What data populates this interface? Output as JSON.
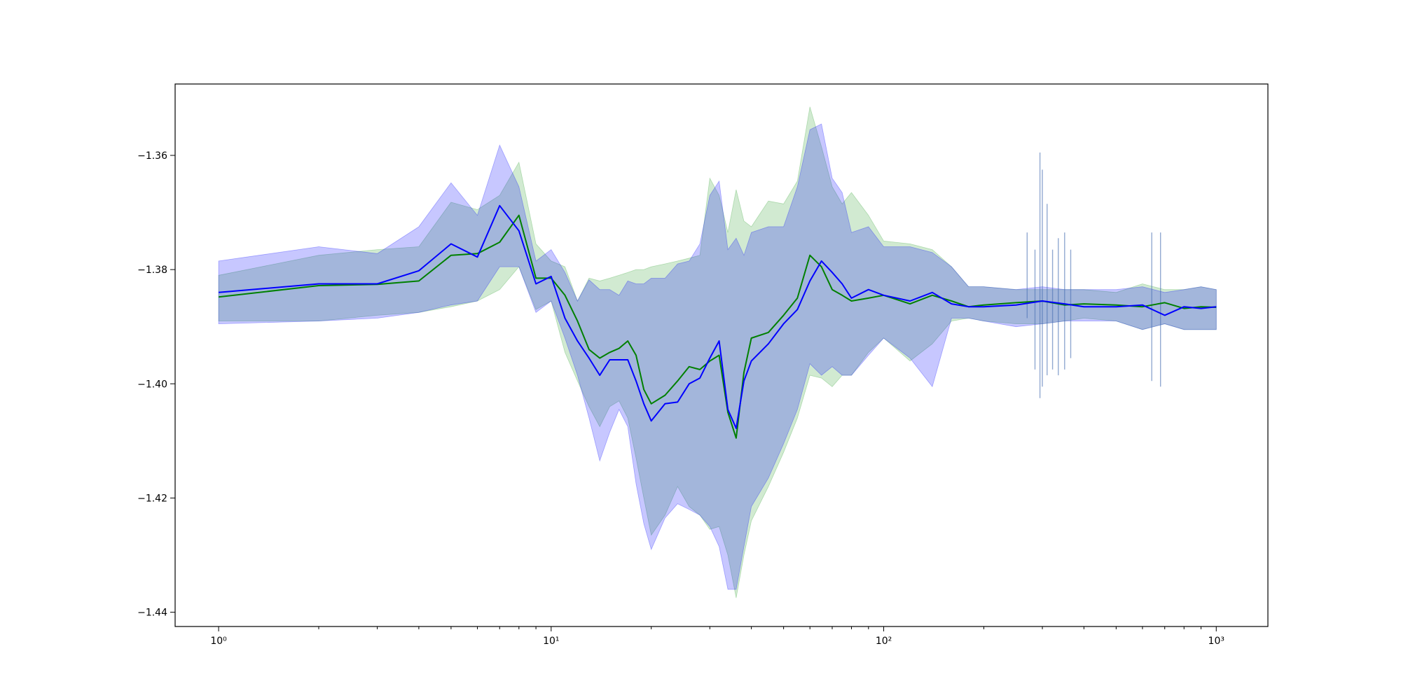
{
  "chart_data": {
    "type": "line",
    "title": "",
    "xlabel": "",
    "ylabel": "",
    "xscale": "log",
    "xlim": [
      0.74,
      1430
    ],
    "ylim": [
      -1.4425,
      -1.3475
    ],
    "grid": false,
    "legend": "none",
    "x_ticks": [
      {
        "value": 1,
        "label": "10⁰"
      },
      {
        "value": 10,
        "label": "10¹"
      },
      {
        "value": 100,
        "label": "10²"
      },
      {
        "value": 1000,
        "label": "10³"
      }
    ],
    "y_ticks": [
      {
        "value": -1.36,
        "label": "−1.36"
      },
      {
        "value": -1.38,
        "label": "−1.38"
      },
      {
        "value": -1.4,
        "label": "−1.40"
      },
      {
        "value": -1.42,
        "label": "−1.42"
      },
      {
        "value": -1.44,
        "label": "−1.44"
      }
    ],
    "series": [
      {
        "color": "#008000",
        "band_color": "#2ca02c",
        "x": [
          1,
          2,
          3,
          4,
          5,
          6,
          7,
          8,
          9,
          10,
          11,
          12,
          13,
          14,
          15,
          16,
          17,
          18,
          19,
          20,
          22,
          24,
          26,
          28,
          30,
          32,
          34,
          36,
          38,
          40,
          45,
          50,
          55,
          60,
          65,
          70,
          75,
          80,
          90,
          100,
          120,
          140,
          160,
          180,
          200,
          250,
          300,
          350,
          400,
          500,
          600,
          700,
          800,
          900,
          1000
        ],
        "y": [
          -1.3848,
          -1.3828,
          -1.3826,
          -1.382,
          -1.3775,
          -1.3772,
          -1.3752,
          -1.3705,
          -1.3815,
          -1.3815,
          -1.3845,
          -1.389,
          -1.394,
          -1.3955,
          -1.3945,
          -1.3938,
          -1.3925,
          -1.395,
          -1.401,
          -1.4035,
          -1.402,
          -1.3995,
          -1.397,
          -1.3975,
          -1.396,
          -1.395,
          -1.405,
          -1.4095,
          -1.398,
          -1.392,
          -1.391,
          -1.388,
          -1.385,
          -1.3775,
          -1.3795,
          -1.3835,
          -1.3845,
          -1.3855,
          -1.385,
          -1.3845,
          -1.386,
          -1.3845,
          -1.3855,
          -1.3865,
          -1.3862,
          -1.3858,
          -1.3855,
          -1.3862,
          -1.386,
          -1.3862,
          -1.3865,
          -1.3858,
          -1.3868,
          -1.3865,
          -1.3866
        ],
        "lower": [
          -1.389,
          -1.389,
          -1.388,
          -1.3875,
          -1.3865,
          -1.3855,
          -1.3835,
          -1.3795,
          -1.387,
          -1.3855,
          -1.3945,
          -1.3995,
          -1.404,
          -1.4075,
          -1.404,
          -1.403,
          -1.406,
          -1.413,
          -1.42,
          -1.4265,
          -1.423,
          -1.418,
          -1.4215,
          -1.423,
          -1.4255,
          -1.425,
          -1.43,
          -1.4375,
          -1.43,
          -1.424,
          -1.418,
          -1.412,
          -1.406,
          -1.3985,
          -1.399,
          -1.4005,
          -1.3985,
          -1.3985,
          -1.3945,
          -1.392,
          -1.396,
          -1.393,
          -1.389,
          -1.3885,
          -1.389,
          -1.3895,
          -1.3895,
          -1.389,
          -1.3885,
          -1.389,
          -1.3905,
          -1.3895,
          -1.3905,
          -1.3905,
          -1.3905
        ],
        "upper": [
          -1.381,
          -1.3775,
          -1.3765,
          -1.376,
          -1.3682,
          -1.3695,
          -1.367,
          -1.3612,
          -1.3755,
          -1.3785,
          -1.3795,
          -1.3855,
          -1.3815,
          -1.382,
          -1.3815,
          -1.381,
          -1.3805,
          -1.38,
          -1.38,
          -1.3795,
          -1.379,
          -1.3785,
          -1.378,
          -1.3775,
          -1.364,
          -1.367,
          -1.3735,
          -1.366,
          -1.3715,
          -1.3725,
          -1.368,
          -1.3685,
          -1.3645,
          -1.3515,
          -1.3585,
          -1.3655,
          -1.3685,
          -1.3665,
          -1.3705,
          -1.375,
          -1.3755,
          -1.3765,
          -1.3795,
          -1.383,
          -1.383,
          -1.3835,
          -1.3835,
          -1.3835,
          -1.3835,
          -1.384,
          -1.3825,
          -1.3835,
          -1.3835,
          -1.383,
          -1.3835
        ]
      },
      {
        "color": "#0000ff",
        "band_color": "#0000ff",
        "x": [
          1,
          2,
          3,
          4,
          5,
          6,
          7,
          8,
          9,
          10,
          11,
          12,
          13,
          14,
          15,
          16,
          17,
          18,
          19,
          20,
          22,
          24,
          26,
          28,
          30,
          32,
          34,
          36,
          38,
          40,
          45,
          50,
          55,
          60,
          65,
          70,
          75,
          80,
          90,
          100,
          120,
          140,
          160,
          180,
          200,
          250,
          300,
          350,
          400,
          500,
          600,
          700,
          800,
          900,
          1000
        ],
        "y": [
          -1.384,
          -1.3825,
          -1.3825,
          -1.3802,
          -1.3755,
          -1.3778,
          -1.3688,
          -1.3732,
          -1.3825,
          -1.3812,
          -1.3885,
          -1.3925,
          -1.3955,
          -1.3985,
          -1.3958,
          -1.3958,
          -1.3958,
          -1.3995,
          -1.4035,
          -1.4065,
          -1.4035,
          -1.4032,
          -1.4,
          -1.399,
          -1.3955,
          -1.3925,
          -1.4045,
          -1.4078,
          -1.3995,
          -1.396,
          -1.393,
          -1.3895,
          -1.387,
          -1.382,
          -1.3785,
          -1.3805,
          -1.3825,
          -1.385,
          -1.3835,
          -1.3845,
          -1.3855,
          -1.384,
          -1.386,
          -1.3865,
          -1.3865,
          -1.3862,
          -1.3855,
          -1.386,
          -1.3865,
          -1.3865,
          -1.3862,
          -1.388,
          -1.3865,
          -1.3868,
          -1.3865
        ],
        "lower": [
          -1.3895,
          -1.389,
          -1.3885,
          -1.3875,
          -1.3862,
          -1.3855,
          -1.3795,
          -1.3795,
          -1.3875,
          -1.3855,
          -1.392,
          -1.3985,
          -1.406,
          -1.4135,
          -1.4085,
          -1.4045,
          -1.4075,
          -1.4175,
          -1.4245,
          -1.429,
          -1.4235,
          -1.421,
          -1.422,
          -1.423,
          -1.425,
          -1.4285,
          -1.436,
          -1.436,
          -1.4285,
          -1.4215,
          -1.4165,
          -1.4105,
          -1.4045,
          -1.3965,
          -1.3985,
          -1.397,
          -1.3985,
          -1.3985,
          -1.395,
          -1.392,
          -1.3955,
          -1.4005,
          -1.3885,
          -1.3885,
          -1.389,
          -1.39,
          -1.3895,
          -1.389,
          -1.389,
          -1.389,
          -1.3905,
          -1.3895,
          -1.3905,
          -1.3905,
          -1.3905
        ],
        "upper": [
          -1.3785,
          -1.376,
          -1.3772,
          -1.3725,
          -1.3648,
          -1.3705,
          -1.3582,
          -1.3655,
          -1.3785,
          -1.3765,
          -1.3805,
          -1.3855,
          -1.3818,
          -1.3835,
          -1.3835,
          -1.3845,
          -1.382,
          -1.3825,
          -1.3825,
          -1.3815,
          -1.3815,
          -1.379,
          -1.3785,
          -1.3755,
          -1.367,
          -1.3645,
          -1.3765,
          -1.3745,
          -1.3775,
          -1.3735,
          -1.3725,
          -1.3725,
          -1.3655,
          -1.3555,
          -1.3545,
          -1.364,
          -1.3665,
          -1.3735,
          -1.3725,
          -1.376,
          -1.376,
          -1.377,
          -1.3795,
          -1.383,
          -1.383,
          -1.3835,
          -1.383,
          -1.3835,
          -1.3835,
          -1.3835,
          -1.383,
          -1.384,
          -1.3835,
          -1.383,
          -1.3835
        ]
      }
    ],
    "spikes": [
      {
        "x": 270,
        "low": -1.3885,
        "high": -1.3735
      },
      {
        "x": 285,
        "low": -1.3975,
        "high": -1.3765
      },
      {
        "x": 295,
        "low": -1.4025,
        "high": -1.3595
      },
      {
        "x": 300,
        "low": -1.4005,
        "high": -1.3625
      },
      {
        "x": 310,
        "low": -1.3985,
        "high": -1.3685
      },
      {
        "x": 322,
        "low": -1.3975,
        "high": -1.3765
      },
      {
        "x": 335,
        "low": -1.3985,
        "high": -1.3745
      },
      {
        "x": 350,
        "low": -1.3975,
        "high": -1.3735
      },
      {
        "x": 365,
        "low": -1.3955,
        "high": -1.3765
      },
      {
        "x": 640,
        "low": -1.3995,
        "high": -1.3735
      },
      {
        "x": 680,
        "low": -1.4005,
        "high": -1.3735
      }
    ]
  }
}
